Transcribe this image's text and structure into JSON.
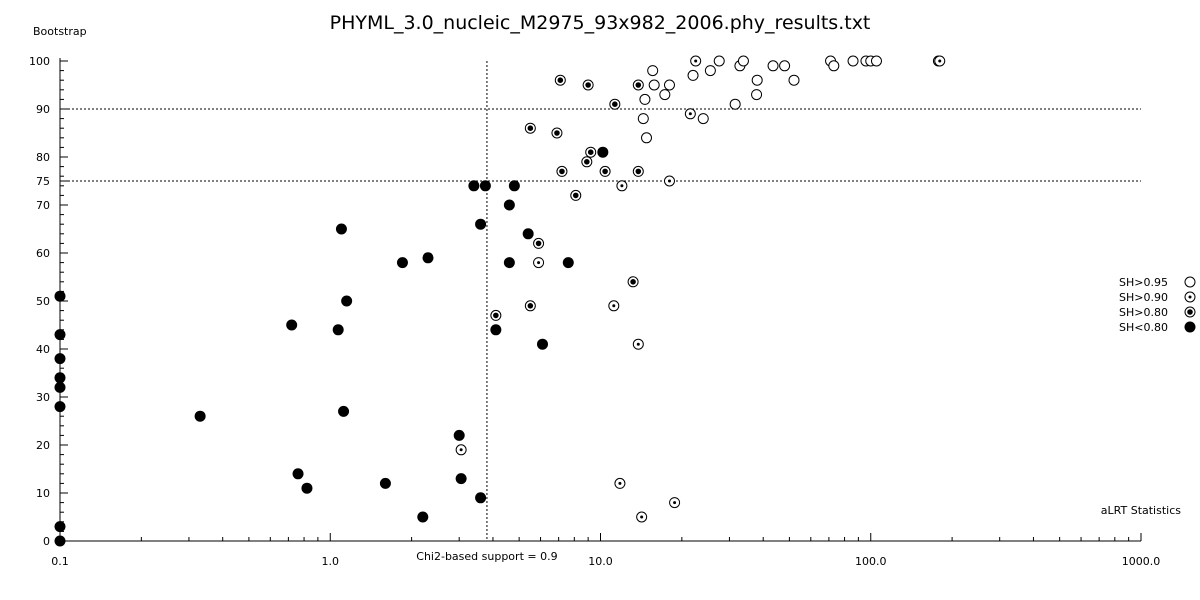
{
  "chart_data": {
    "type": "scatter",
    "title": "PHYML_3.0_nucleic_M2975_93x982_2006.phy_results.txt",
    "xlabel": "aLRT Statistics",
    "ylabel": "Bootstrap",
    "x_scale": "log",
    "xlim": [
      0.1,
      1000.0
    ],
    "ylim": [
      0,
      100
    ],
    "x_ticks": [
      "0.1",
      "1.0",
      "10.0",
      "100.0",
      "1000.0"
    ],
    "y_ticks": [
      "0",
      "10",
      "20",
      "30",
      "40",
      "50",
      "60",
      "70",
      "75",
      "80",
      "90",
      "100"
    ],
    "grid": false,
    "reference_lines": {
      "horizontal": [
        90,
        75
      ],
      "vertical": [
        {
          "x": 3.8,
          "label": "Chi2-based support = 0.9"
        }
      ]
    },
    "legend_position": "right",
    "series": [
      {
        "name": "SH>0.95",
        "marker": "open-circle",
        "points": [
          [
            15.6,
            98
          ],
          [
            18,
            95
          ],
          [
            15.8,
            95
          ],
          [
            14.6,
            92
          ],
          [
            14.4,
            88
          ],
          [
            14.8,
            84
          ],
          [
            17.3,
            93
          ],
          [
            22,
            97
          ],
          [
            25.5,
            98
          ],
          [
            27.5,
            100
          ],
          [
            31.5,
            91
          ],
          [
            32.8,
            99
          ],
          [
            33.8,
            100
          ],
          [
            38,
            96
          ],
          [
            37.8,
            93
          ],
          [
            43.5,
            99
          ],
          [
            48,
            99
          ],
          [
            52,
            96
          ],
          [
            24,
            88
          ],
          [
            71,
            100
          ],
          [
            73,
            99
          ],
          [
            86,
            100
          ],
          [
            96,
            100
          ],
          [
            100,
            100
          ],
          [
            105,
            100
          ],
          [
            178,
            100
          ]
        ]
      },
      {
        "name": "SH>0.90",
        "marker": "dot-circle",
        "points": [
          [
            22.5,
            100
          ],
          [
            11.2,
            49
          ],
          [
            13.8,
            41
          ],
          [
            12,
            74
          ],
          [
            18,
            75
          ],
          [
            11.8,
            12
          ],
          [
            18.8,
            8
          ],
          [
            14.2,
            5
          ],
          [
            21.5,
            89
          ],
          [
            180,
            100
          ],
          [
            3.05,
            19
          ],
          [
            5.9,
            58
          ]
        ]
      },
      {
        "name": "SH>0.80",
        "marker": "bull-circle",
        "points": [
          [
            7.1,
            96
          ],
          [
            9,
            95
          ],
          [
            13.8,
            95
          ],
          [
            11.3,
            91
          ],
          [
            5.5,
            86
          ],
          [
            6.9,
            85
          ],
          [
            9.2,
            81
          ],
          [
            8.9,
            79
          ],
          [
            7.2,
            77
          ],
          [
            10.4,
            77
          ],
          [
            13.8,
            77
          ],
          [
            8.1,
            72
          ],
          [
            5.9,
            62
          ],
          [
            5.5,
            49
          ],
          [
            13.2,
            54
          ],
          [
            4.1,
            47
          ]
        ]
      },
      {
        "name": "SH<0.80",
        "marker": "filled-circle",
        "points": [
          [
            10.2,
            81
          ],
          [
            3.4,
            74
          ],
          [
            3.75,
            74
          ],
          [
            4.8,
            74
          ],
          [
            4.6,
            70
          ],
          [
            3.6,
            66
          ],
          [
            1.1,
            65
          ],
          [
            5.4,
            64
          ],
          [
            2.3,
            59
          ],
          [
            1.85,
            58
          ],
          [
            4.6,
            58
          ],
          [
            7.6,
            58
          ],
          [
            1.15,
            50
          ],
          [
            0.72,
            45
          ],
          [
            1.07,
            44
          ],
          [
            4.1,
            44
          ],
          [
            6.1,
            41
          ],
          [
            0.33,
            26
          ],
          [
            1.12,
            27
          ],
          [
            3,
            22
          ],
          [
            3.05,
            13
          ],
          [
            3.6,
            9
          ],
          [
            0.76,
            14
          ],
          [
            0.82,
            11
          ],
          [
            1.6,
            12
          ],
          [
            2.2,
            5
          ],
          [
            0.1,
            51
          ],
          [
            0.1,
            43
          ],
          [
            0.1,
            38
          ],
          [
            0.1,
            34
          ],
          [
            0.1,
            32
          ],
          [
            0.1,
            28
          ],
          [
            0.1,
            3
          ],
          [
            0.1,
            0
          ]
        ]
      }
    ]
  }
}
